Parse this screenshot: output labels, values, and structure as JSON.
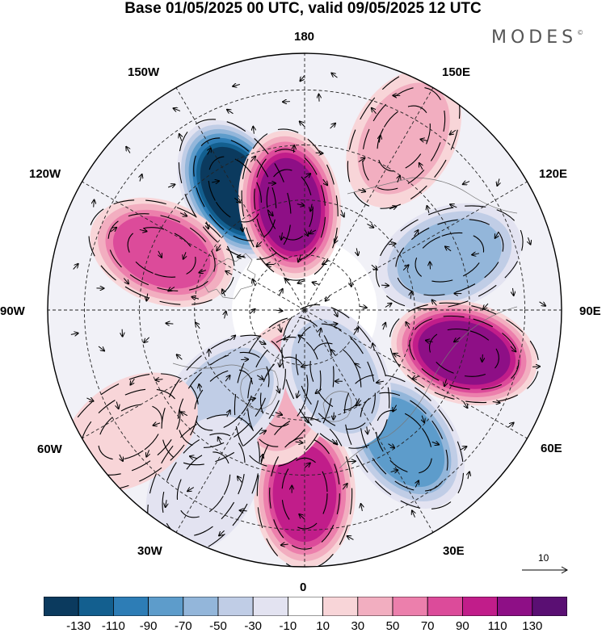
{
  "title": "Base 01/05/2025 00 UTC, valid 09/05/2025 12 UTC",
  "brand": "MODES",
  "brand_mark": "©",
  "longitude_labels": {
    "lon_180": "180",
    "lon_150e": "150E",
    "lon_120e": "120E",
    "lon_90e": "90E",
    "lon_60e": "60E",
    "lon_30e": "30E",
    "lon_0": "0",
    "lon_30w": "30W",
    "lon_60w": "60W",
    "lon_90w": "90W",
    "lon_120w": "120W",
    "lon_150w": "150W"
  },
  "vector_reference": {
    "label": "10"
  },
  "colorbar": {
    "bounds": [
      -150,
      -130,
      -110,
      -90,
      -70,
      -50,
      -30,
      -10,
      10,
      30,
      50,
      70,
      90,
      110,
      130,
      150
    ],
    "tick_labels": [
      "-130",
      "-110",
      "-90",
      "-70",
      "-50",
      "-30",
      "-10",
      "10",
      "30",
      "50",
      "70",
      "90",
      "110",
      "130"
    ],
    "colors": [
      "#0b3a5e",
      "#135f8f",
      "#2d7db6",
      "#5d9ccb",
      "#93b6da",
      "#c0cde6",
      "#e3e3f1",
      "#ffffff",
      "#f8d5d8",
      "#f2aec0",
      "#ec7fac",
      "#dc4b9a",
      "#c11d8a",
      "#8e0f86",
      "#5a0f73"
    ]
  },
  "anomaly_centers": [
    {
      "name": "low-150w",
      "lon": -150,
      "lat": 52,
      "value": -140
    },
    {
      "name": "high-175w",
      "lon": -172,
      "lat": 61,
      "value": 120
    },
    {
      "name": "high-110w",
      "lon": -112,
      "lat": 48,
      "value": 95
    },
    {
      "name": "low-100e",
      "lon": 110,
      "lat": 48,
      "value": -70
    },
    {
      "name": "high-75e",
      "lon": 75,
      "lat": 45,
      "value": 120
    },
    {
      "name": "low-40e",
      "lon": 37,
      "lat": 45,
      "value": -80
    },
    {
      "name": "high-0",
      "lon": 0,
      "lat": 40,
      "value": 110
    },
    {
      "name": "high-15w",
      "lon": -14,
      "lat": 67,
      "value": 50
    },
    {
      "name": "low-40w",
      "lon": -42,
      "lat": 57,
      "value": -55
    },
    {
      "name": "low-30w",
      "lon": -30,
      "lat": 35,
      "value": -35
    },
    {
      "name": "high-55w",
      "lon": -55,
      "lat": 32,
      "value": 30
    },
    {
      "name": "high-150e",
      "lon": 150,
      "lat": 36,
      "value": 40
    },
    {
      "name": "low-25e",
      "lon": 25,
      "lat": 70,
      "value": -45
    }
  ]
}
